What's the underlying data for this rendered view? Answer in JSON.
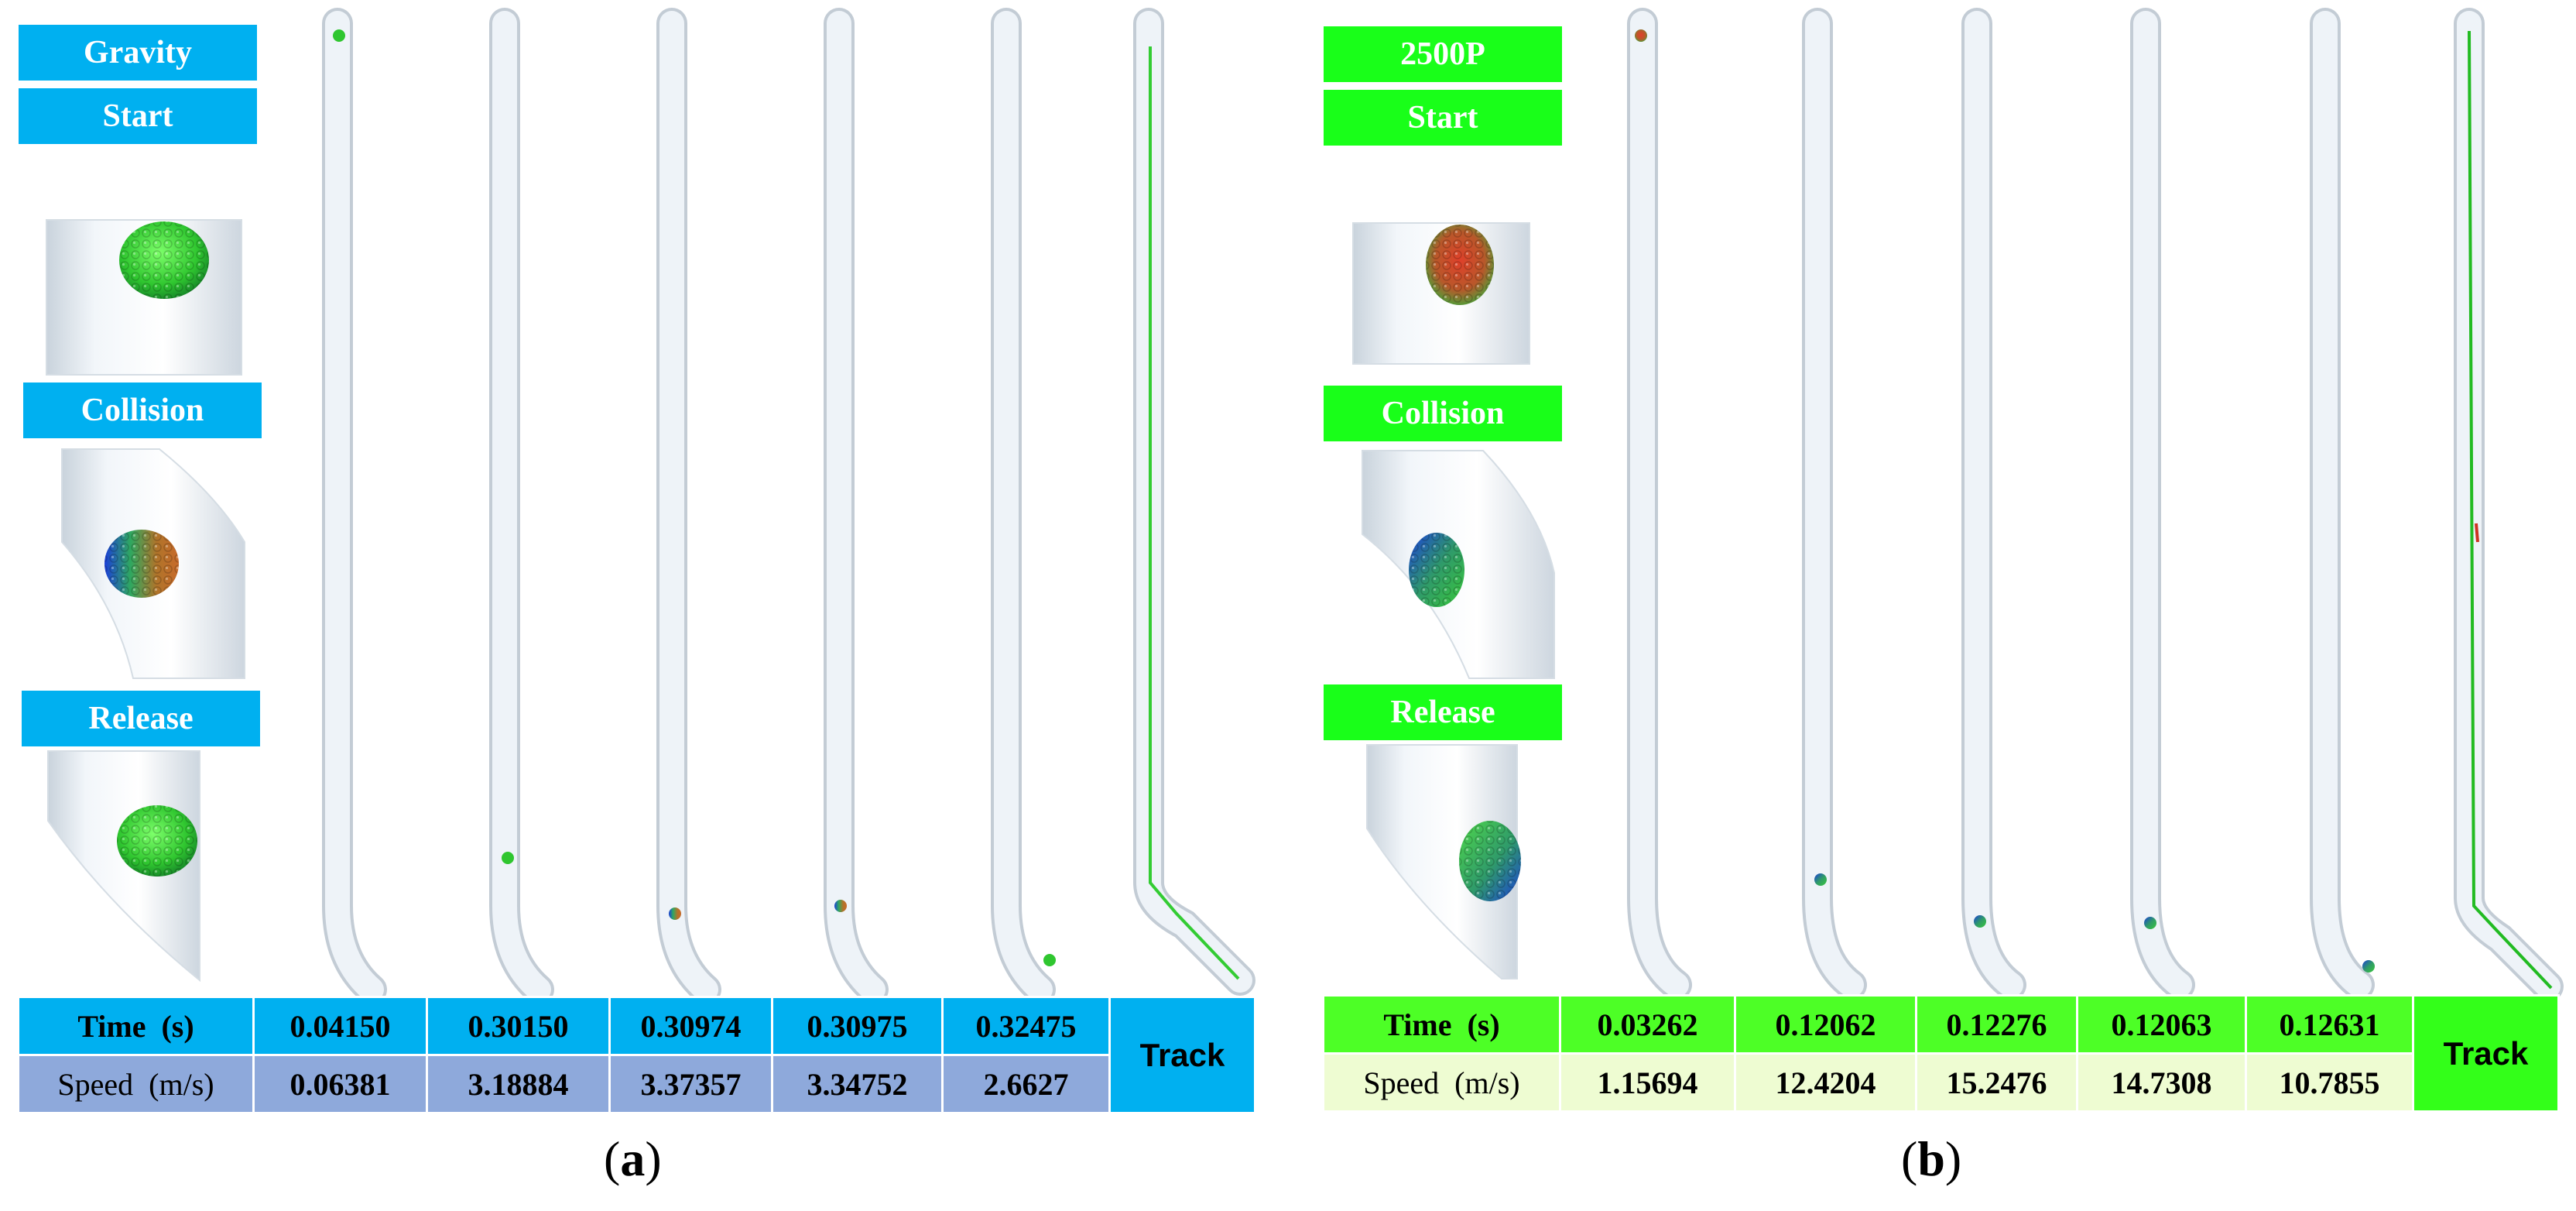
{
  "panels": [
    {
      "id": "a",
      "caption_letter": "a",
      "labels": {
        "top": "Gravity",
        "start": "Start",
        "collision": "Collision",
        "release": "Release"
      },
      "table": {
        "time_label": "Time  (s)",
        "speed_label": "Speed  (m/s)",
        "times": [
          "0.04150",
          "0.30150",
          "0.30974",
          "0.30975",
          "0.32475"
        ],
        "speeds": [
          "0.06381",
          "3.18884",
          "3.37357",
          "3.34752",
          "2.6627"
        ],
        "track_label": "Track"
      },
      "colors": {
        "label_bg": "#00b0f0",
        "row1_bg": "#00b0f0",
        "row2_bg": "#8ea9db",
        "track_line": "#33cc33"
      }
    },
    {
      "id": "b",
      "caption_letter": "b",
      "labels": {
        "top": "2500P",
        "start": "Start",
        "collision": "Collision",
        "release": "Release"
      },
      "table": {
        "time_label": "Time  (s)",
        "speed_label": "Speed  (m/s)",
        "times": [
          "0.03262",
          "0.12062",
          "0.12276",
          "0.12063",
          "0.12631"
        ],
        "speeds": [
          "1.15694",
          "12.4204",
          "15.2476",
          "14.7308",
          "10.7855"
        ],
        "track_label": "Track"
      },
      "colors": {
        "label_bg": "#19ff19",
        "row1_bg": "#4dff26",
        "row2_bg": "#eefcd2",
        "track_line": "#22bb22"
      }
    }
  ]
}
